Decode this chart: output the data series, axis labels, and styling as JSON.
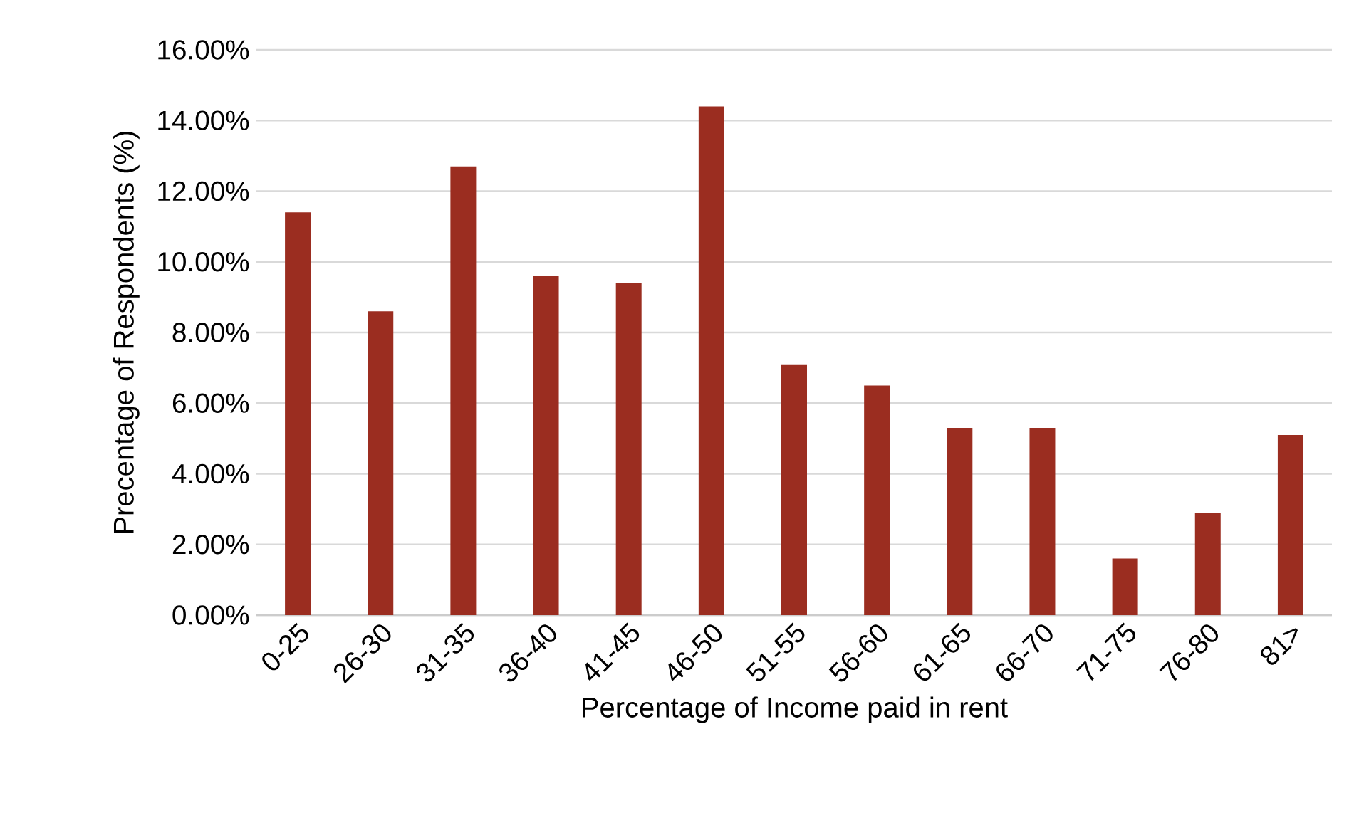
{
  "chart_data": {
    "type": "bar",
    "xlabel": "Percentage of Income paid in rent",
    "ylabel": "Precentage of Respondents (%)",
    "categories": [
      "0-25",
      "26-30",
      "31-35",
      "36-40",
      "41-45",
      "46-50",
      "51-55",
      "56-60",
      "61-65",
      "66-70",
      "71-75",
      "76-80",
      "81>"
    ],
    "values": [
      11.4,
      8.6,
      12.7,
      9.6,
      9.4,
      14.4,
      7.1,
      6.5,
      5.3,
      5.3,
      1.6,
      2.9,
      5.1
    ],
    "color": "#9b2d20",
    "ylim": [
      0,
      16
    ],
    "yticks": [
      {
        "value": 0,
        "label": "0.00%"
      },
      {
        "value": 2,
        "label": "2.00%"
      },
      {
        "value": 4,
        "label": "4.00%"
      },
      {
        "value": 6,
        "label": "6.00%"
      },
      {
        "value": 8,
        "label": "8.00%"
      },
      {
        "value": 10,
        "label": "10.00%"
      },
      {
        "value": 12,
        "label": "12.00%"
      },
      {
        "value": 14,
        "label": "14.00%"
      },
      {
        "value": 16,
        "label": "16.00%"
      }
    ],
    "grid": "y"
  }
}
